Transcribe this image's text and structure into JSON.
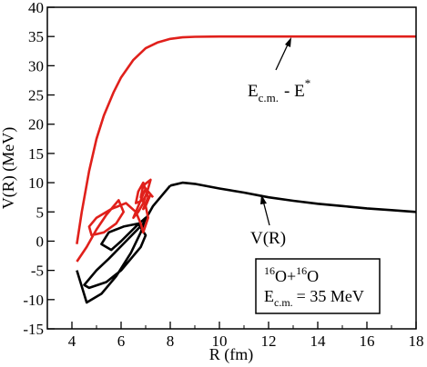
{
  "chart_data": {
    "type": "line",
    "xlabel": "R (fm)",
    "ylabel": "V(R) (MeV)",
    "xlim": [
      3,
      18
    ],
    "ylim": [
      -15,
      40
    ],
    "x_ticks": [
      "4",
      "6",
      "8",
      "10",
      "12",
      "14",
      "16",
      "18"
    ],
    "y_ticks": [
      "-15",
      "-10",
      "-5",
      "0",
      "5",
      "10",
      "15",
      "20",
      "25",
      "30",
      "35",
      "40"
    ],
    "grid": false,
    "series": [
      {
        "name": "Ec.m. - E*",
        "color": "#e0201b",
        "x": [
          4.2,
          4.4,
          4.7,
          5.0,
          5.3,
          5.7,
          6.0,
          6.5,
          7.0,
          7.5,
          8.0,
          8.5,
          9.0,
          10.0,
          12.0,
          14.0,
          16.0,
          18.0
        ],
        "y": [
          -0.5,
          5.0,
          12.0,
          17.5,
          21.5,
          25.5,
          28.0,
          31.0,
          33.0,
          34.0,
          34.6,
          34.85,
          34.95,
          35.0,
          35.0,
          35.0,
          35.0,
          35.0
        ]
      },
      {
        "name": "V(R)",
        "color": "#000000",
        "x": [
          8.0,
          8.5,
          9.0,
          10.0,
          11.0,
          12.0,
          13.0,
          14.0,
          15.0,
          16.0,
          17.0,
          18.0
        ],
        "y": [
          9.5,
          10.0,
          9.8,
          9.0,
          8.3,
          7.5,
          6.9,
          6.4,
          6.0,
          5.6,
          5.3,
          5.0
        ]
      },
      {
        "name": "",
        "color": "#000000",
        "x": [
          4.2,
          4.6,
          5.2,
          5.8,
          6.4,
          6.8,
          7.0,
          6.6,
          6.0,
          5.6,
          5.2,
          5.5,
          6.1,
          6.7,
          7.0,
          6.8,
          6.4,
          6.0,
          5.4,
          4.7,
          4.5,
          5.0,
          5.5,
          6.2,
          6.9,
          7.3,
          7.8,
          8.0
        ],
        "y": [
          -5.0,
          -10.5,
          -9.0,
          -6.0,
          -2.0,
          1.5,
          4.0,
          2.5,
          0.0,
          -1.5,
          -0.5,
          1.5,
          2.5,
          3.0,
          1.0,
          -1.0,
          -3.0,
          -5.0,
          -7.0,
          -8.0,
          -7.5,
          -5.0,
          -3.0,
          0.0,
          3.0,
          6.0,
          8.5,
          9.5
        ]
      },
      {
        "name": "",
        "color": "#e0201b",
        "x": [
          4.2,
          4.6,
          5.0,
          5.4,
          5.9,
          6.1,
          5.8,
          5.3,
          4.8,
          4.7,
          5.0,
          5.6,
          6.2,
          6.6,
          6.8,
          6.9,
          7.1,
          7.0,
          6.8,
          6.9,
          7.2,
          7.1,
          6.9,
          6.7,
          6.5,
          6.8,
          7.0,
          7.2,
          7.0,
          6.9,
          7.1,
          6.9,
          6.7,
          6.6,
          6.9,
          7.1,
          7.3
        ],
        "y": [
          -3.5,
          -1.0,
          2.0,
          4.5,
          7.0,
          5.0,
          3.0,
          1.5,
          1.0,
          2.5,
          4.0,
          5.5,
          6.5,
          5.0,
          3.0,
          1.5,
          4.0,
          6.0,
          7.5,
          9.5,
          10.5,
          9.0,
          6.5,
          5.0,
          4.0,
          7.0,
          9.0,
          8.0,
          6.0,
          5.5,
          7.5,
          10.0,
          8.5,
          6.5,
          7.0,
          8.5,
          7.5
        ]
      }
    ],
    "annotations": {
      "ecm_base": "E",
      "ecm_sub": "c.m.",
      "ecm_rest": "- E",
      "ecm_sup": "*",
      "vr_label": "V(R)",
      "box_line1": {
        "mass1": "16",
        "el1": "O",
        "plus": "+",
        "mass2": "16",
        "el2": "O"
      },
      "box_line2": {
        "base": "E",
        "sub": "c.m.",
        "rest": "= 35 MeV"
      }
    }
  }
}
